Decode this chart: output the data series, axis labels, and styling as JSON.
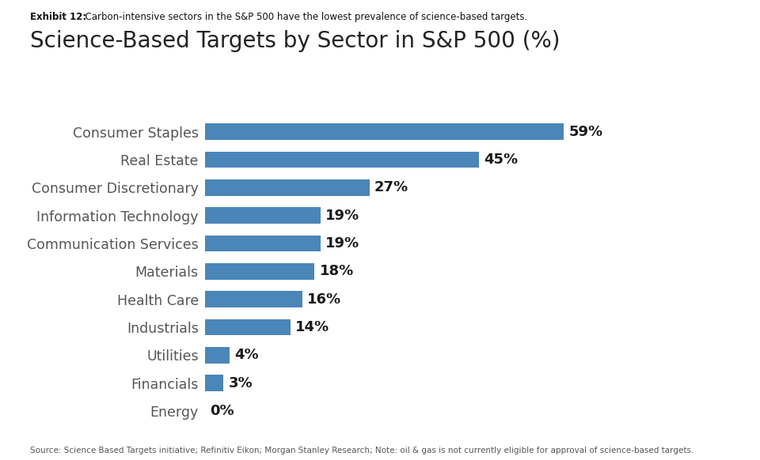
{
  "title": "Science-Based Targets by Sector in S&P 500 (%)",
  "exhibit_label": "Exhibit 12:",
  "exhibit_text": "  Carbon-intensive sectors in the S&P 500 have the lowest prevalence of science-based targets.",
  "source_text": "Source: Science Based Targets initiative; Refinitiv Eikon; Morgan Stanley Research; Note: oil & gas is not currently eligible for approval of science-based targets.",
  "categories": [
    "Consumer Staples",
    "Real Estate",
    "Consumer Discretionary",
    "Information Technology",
    "Communication Services",
    "Materials",
    "Health Care",
    "Industrials",
    "Utilities",
    "Financials",
    "Energy"
  ],
  "values": [
    59,
    45,
    27,
    19,
    19,
    18,
    16,
    14,
    4,
    3,
    0
  ],
  "bar_color": "#4a86b8",
  "label_color": "#1a1a1a",
  "background_color": "#ffffff",
  "title_fontsize": 20,
  "label_fontsize": 12.5,
  "bar_label_fontsize": 13,
  "exhibit_fontsize": 8.5,
  "source_fontsize": 7.5,
  "xlim": 75
}
